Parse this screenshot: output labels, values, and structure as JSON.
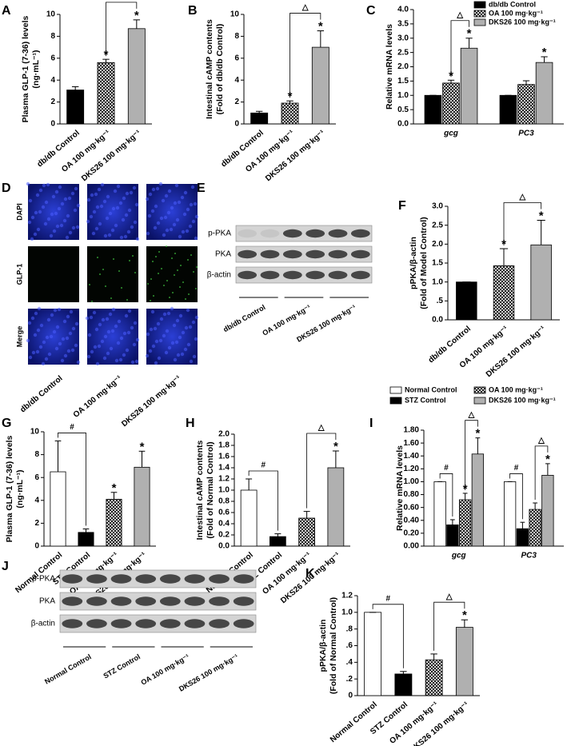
{
  "chart_data": [
    {
      "panel": "A",
      "type": "bar",
      "ylabel": [
        "Plasma GLP-1 (7-36) levels",
        "(ng·mL⁻¹)"
      ],
      "categories": [
        "db/db Control",
        "OA 100 mg·kg⁻¹",
        "DKS26 100 mg·kg⁻¹"
      ],
      "values": [
        3.1,
        5.6,
        8.7
      ],
      "errors": [
        0.3,
        0.3,
        0.8
      ],
      "colors": [
        "#000000",
        "#ffffff",
        "#b0b0b0"
      ],
      "hatched": [
        false,
        true,
        false
      ],
      "significance": [
        null,
        "*",
        "*"
      ],
      "brackets": [
        {
          "label": "△",
          "categories": [
            1,
            2
          ]
        }
      ],
      "ylim": [
        0,
        10
      ],
      "yticks": [
        0,
        2,
        4,
        6,
        8,
        10
      ]
    },
    {
      "panel": "B",
      "type": "bar",
      "ylabel": [
        "Intestinal cAMP contents",
        "(Fold of db/db Control)"
      ],
      "categories": [
        "db/db Control",
        "OA 100 mg·kg⁻¹",
        "DKS26 100 mg·kg⁻¹"
      ],
      "values": [
        1.0,
        1.9,
        7.0
      ],
      "errors": [
        0.15,
        0.2,
        1.5
      ],
      "colors": [
        "#000000",
        "#ffffff",
        "#b0b0b0"
      ],
      "hatched": [
        false,
        true,
        false
      ],
      "significance": [
        null,
        "*",
        "*"
      ],
      "brackets": [
        {
          "label": "△",
          "categories": [
            1,
            2
          ]
        }
      ],
      "ylim": [
        0,
        10
      ],
      "yticks": [
        0,
        2,
        4,
        6,
        8,
        10
      ]
    },
    {
      "panel": "C",
      "type": "grouped_bar",
      "ylabel": [
        "Relative mRNA levels"
      ],
      "categories": [
        "gcg",
        "PC3"
      ],
      "series": [
        {
          "name": "db/db Control",
          "color": "#000000",
          "hatched": false,
          "values": [
            1.0,
            1.0
          ],
          "errors": [
            0,
            0
          ],
          "significance": [
            null,
            null
          ]
        },
        {
          "name": "OA 100 mg·kg⁻¹",
          "color": "#ffffff",
          "hatched": true,
          "values": [
            1.43,
            1.38
          ],
          "errors": [
            0.1,
            0.13
          ],
          "significance": [
            "*",
            null
          ]
        },
        {
          "name": "DKS26 100 mg·kg⁻¹",
          "color": "#b0b0b0",
          "hatched": false,
          "values": [
            2.65,
            2.15
          ],
          "errors": [
            0.35,
            0.2
          ],
          "significance": [
            "*",
            "*"
          ]
        }
      ],
      "brackets": [
        {
          "label": "△",
          "category": 0,
          "series": [
            1,
            2
          ]
        }
      ],
      "legend": "upper right",
      "ylim": [
        0,
        4
      ],
      "yticks": [
        {
          "value": 0,
          "label": "0.0"
        },
        0.5,
        {
          "value": 1,
          "label": "1.0"
        },
        1.5,
        {
          "value": 2,
          "label": "2.0"
        },
        2.5,
        {
          "value": 3,
          "label": "3.0"
        },
        3.5,
        {
          "value": 4,
          "label": "4.0"
        }
      ]
    },
    {
      "panel": "F",
      "type": "bar",
      "ylabel": [
        "pPKA/β-actin",
        "(Fold of Model Control)"
      ],
      "categories": [
        "db/db Control",
        "OA 100 mg·kg⁻¹",
        "DKS26 100 mg·kg⁻¹"
      ],
      "values": [
        1.0,
        1.43,
        1.98
      ],
      "errors": [
        0,
        0.45,
        0.65
      ],
      "colors": [
        "#000000",
        "#ffffff",
        "#b0b0b0"
      ],
      "hatched": [
        false,
        true,
        false
      ],
      "significance": [
        null,
        "*",
        "*"
      ],
      "brackets": [
        {
          "label": "△",
          "categories": [
            1,
            2
          ]
        }
      ],
      "ylim": [
        0,
        3
      ],
      "yticks": [
        {
          "value": 0,
          "label": "0.0"
        },
        {
          "value": 0.5,
          "label": ".5"
        },
        {
          "value": 1,
          "label": "1.0"
        },
        1.5,
        {
          "value": 2,
          "label": "2.0"
        },
        2.5,
        {
          "value": 3,
          "label": "3.0"
        }
      ]
    },
    {
      "panel": "G",
      "type": "bar",
      "ylabel": [
        "Plasma GLP-1 (7-36) levels",
        "(ng·mL⁻¹)"
      ],
      "categories": [
        "Normal Control",
        "STZ Control",
        "OA 100 mg·kg⁻¹",
        "DKS26 100 mg·kg⁻¹"
      ],
      "values": [
        6.5,
        1.2,
        4.1,
        6.9
      ],
      "errors": [
        2.7,
        0.3,
        0.6,
        1.4
      ],
      "colors": [
        "#ffffff",
        "#000000",
        "#ffffff",
        "#b0b0b0"
      ],
      "hatched": [
        false,
        false,
        true,
        false
      ],
      "significance": [
        null,
        null,
        "*",
        "*"
      ],
      "brackets": [
        {
          "label": "#",
          "categories": [
            0,
            1
          ]
        }
      ],
      "ylim": [
        0,
        10
      ],
      "yticks": [
        0,
        2,
        4,
        6,
        8,
        10
      ]
    },
    {
      "panel": "H",
      "type": "bar",
      "ylabel": [
        "Intestinal cAMP contents",
        "(Fold of Normal Control)"
      ],
      "categories": [
        "Normal Control",
        "STZ Control",
        "OA 100 mg·kg⁻¹",
        "DKS26 100 mg·kg⁻¹"
      ],
      "values": [
        1.0,
        0.17,
        0.5,
        1.4
      ],
      "errors": [
        0.2,
        0.05,
        0.12,
        0.3
      ],
      "colors": [
        "#ffffff",
        "#000000",
        "#ffffff",
        "#b0b0b0"
      ],
      "hatched": [
        false,
        false,
        true,
        false
      ],
      "significance": [
        null,
        null,
        null,
        "*"
      ],
      "brackets": [
        {
          "label": "#",
          "categories": [
            0,
            1
          ]
        },
        {
          "label": "△",
          "categories": [
            2,
            3
          ]
        }
      ],
      "ylim": [
        0,
        2
      ],
      "yticks": [
        {
          "value": 0,
          "label": "0.0"
        },
        0.2,
        0.4,
        0.6,
        0.8,
        {
          "value": 1,
          "label": "1.0"
        },
        1.2,
        1.4,
        1.6,
        1.8,
        {
          "value": 2,
          "label": "2.0"
        }
      ]
    },
    {
      "panel": "I",
      "type": "grouped_bar",
      "ylabel": [
        "Relative mRNA levels"
      ],
      "categories": [
        "gcg",
        "PC3"
      ],
      "series": [
        {
          "name": "Normal Control",
          "color": "#ffffff",
          "hatched": false,
          "values": [
            1.0,
            1.0
          ],
          "errors": [
            0,
            0
          ],
          "significance": [
            null,
            null
          ]
        },
        {
          "name": "STZ Control",
          "color": "#000000",
          "hatched": false,
          "values": [
            0.33,
            0.27
          ],
          "errors": [
            0.08,
            0.1
          ],
          "significance": [
            null,
            null
          ]
        },
        {
          "name": "OA 100 mg·kg⁻¹",
          "color": "#ffffff",
          "hatched": true,
          "values": [
            0.72,
            0.57
          ],
          "errors": [
            0.1,
            0.1
          ],
          "significance": [
            "*",
            null
          ]
        },
        {
          "name": "DKS26 100 mg·kg⁻¹",
          "color": "#b0b0b0",
          "hatched": false,
          "values": [
            1.43,
            1.1
          ],
          "errors": [
            0.25,
            0.18
          ],
          "significance": [
            "*",
            "*"
          ]
        }
      ],
      "brackets": [
        {
          "label": "#",
          "category": 0,
          "series": [
            0,
            1
          ]
        },
        {
          "label": "△",
          "category": 0,
          "series": [
            2,
            3
          ]
        },
        {
          "label": "#",
          "category": 1,
          "series": [
            0,
            1
          ]
        },
        {
          "label": "△",
          "category": 1,
          "series": [
            2,
            3
          ]
        }
      ],
      "legend": "top",
      "ylim": [
        0,
        1.8
      ],
      "yticks": [
        {
          "value": 0,
          "label": "0.00"
        },
        {
          "value": 0.2,
          "label": "0.20"
        },
        {
          "value": 0.4,
          "label": "0.40"
        },
        {
          "value": 0.6,
          "label": "0.60"
        },
        {
          "value": 0.8,
          "label": "0.80"
        },
        {
          "value": 1,
          "label": "1.00"
        },
        {
          "value": 1.2,
          "label": "1.20"
        },
        {
          "value": 1.4,
          "label": "1.40"
        },
        {
          "value": 1.6,
          "label": "1.60"
        },
        {
          "value": 1.8,
          "label": "1.80"
        }
      ]
    },
    {
      "panel": "K",
      "type": "bar",
      "ylabel": [
        "pPKA/β-actin",
        "(Fold of Normal Control)"
      ],
      "categories": [
        "Normal Control",
        "STZ Control",
        "OA 100 mg·kg⁻¹",
        "DKS26 100 mg·kg⁻¹"
      ],
      "values": [
        1.0,
        0.26,
        0.43,
        0.82
      ],
      "errors": [
        0,
        0.03,
        0.07,
        0.09
      ],
      "colors": [
        "#ffffff",
        "#000000",
        "#ffffff",
        "#b0b0b0"
      ],
      "hatched": [
        false,
        false,
        true,
        false
      ],
      "significance": [
        null,
        null,
        null,
        "*"
      ],
      "brackets": [
        {
          "label": "#",
          "categories": [
            0,
            1
          ]
        },
        {
          "label": "△",
          "categories": [
            2,
            3
          ]
        }
      ],
      "ylim": [
        0,
        1.2
      ],
      "yticks": [
        0,
        {
          "value": 0.2,
          "label": ".2"
        },
        {
          "value": 0.4,
          "label": ".4"
        },
        {
          "value": 0.6,
          "label": ".6"
        },
        {
          "value": 0.8,
          "label": ".8"
        },
        {
          "value": 1,
          "label": "1.0"
        },
        1.2
      ]
    }
  ],
  "images": [
    {
      "panel": "D",
      "rows": [
        "DAPI",
        "GLP-1",
        "Merge"
      ],
      "columns": [
        "db/db Control",
        "OA 100 mg·kg⁻¹",
        "DKS26 100 mg·kg⁻¹"
      ]
    },
    {
      "panel": "E",
      "rows": [
        "p-PKA",
        "PKA",
        "β-actin"
      ],
      "columns": [
        "db/db Control",
        "OA 100 mg·kg⁻¹",
        "DKS26 100 mg·kg⁻¹"
      ]
    },
    {
      "panel": "J",
      "rows": [
        "p-PKA",
        "PKA",
        "β-actin"
      ],
      "columns": [
        "Normal Control",
        "STZ Control",
        "OA 100 mg·kg⁻¹",
        "DKS26 100 mg·kg⁻¹"
      ]
    }
  ]
}
